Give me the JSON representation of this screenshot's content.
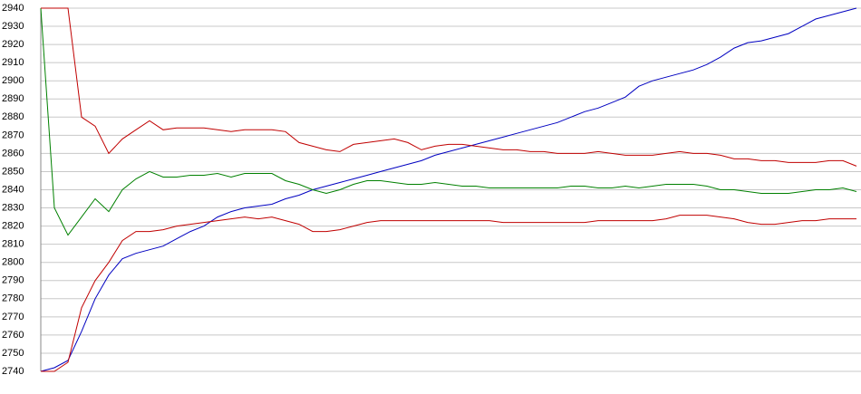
{
  "chart_data": {
    "type": "line",
    "ylim": [
      2740,
      2940
    ],
    "yticks": [
      2740,
      2750,
      2760,
      2770,
      2780,
      2790,
      2800,
      2810,
      2820,
      2830,
      2840,
      2850,
      2860,
      2870,
      2880,
      2890,
      2900,
      2910,
      2920,
      2930,
      2940
    ],
    "grid": true,
    "series": [
      {
        "color": "#0000c0",
        "values": [
          2740,
          2742,
          2746,
          2762,
          2780,
          2793,
          2802,
          2805,
          2807,
          2809,
          2813,
          2817,
          2820,
          2825,
          2828,
          2830,
          2831,
          2832,
          2835,
          2837,
          2840,
          2842,
          2844,
          2846,
          2848,
          2850,
          2852,
          2854,
          2856,
          2859,
          2861,
          2863,
          2865,
          2867,
          2869,
          2871,
          2873,
          2875,
          2877,
          2880,
          2883,
          2885,
          2888,
          2891,
          2897,
          2900,
          2902,
          2904,
          2906,
          2909,
          2913,
          2918,
          2921,
          2922,
          2924,
          2926,
          2930,
          2934,
          2936,
          2938,
          2940
        ]
      },
      {
        "color": "#008000",
        "values": [
          2940,
          2830,
          2815,
          2825,
          2835,
          2828,
          2840,
          2846,
          2850,
          2847,
          2847,
          2848,
          2848,
          2849,
          2847,
          2849,
          2849,
          2849,
          2845,
          2843,
          2840,
          2838,
          2840,
          2843,
          2845,
          2845,
          2844,
          2843,
          2843,
          2844,
          2843,
          2842,
          2842,
          2841,
          2841,
          2841,
          2841,
          2841,
          2841,
          2842,
          2842,
          2841,
          2841,
          2842,
          2841,
          2842,
          2843,
          2843,
          2843,
          2842,
          2840,
          2840,
          2839,
          2838,
          2838,
          2838,
          2839,
          2840,
          2840,
          2841,
          2839
        ]
      },
      {
        "color": "#c00000",
        "values": [
          2940,
          2940,
          2940,
          2880,
          2875,
          2860,
          2868,
          2873,
          2878,
          2873,
          2874,
          2874,
          2874,
          2873,
          2872,
          2873,
          2873,
          2873,
          2872,
          2866,
          2864,
          2862,
          2861,
          2865,
          2866,
          2867,
          2868,
          2866,
          2862,
          2864,
          2865,
          2865,
          2864,
          2863,
          2862,
          2862,
          2861,
          2861,
          2860,
          2860,
          2860,
          2861,
          2860,
          2859,
          2859,
          2859,
          2860,
          2861,
          2860,
          2860,
          2859,
          2857,
          2857,
          2856,
          2856,
          2855,
          2855,
          2855,
          2856,
          2856,
          2853
        ]
      },
      {
        "color": "#c00000",
        "values": [
          2740,
          2740,
          2745,
          2775,
          2790,
          2800,
          2812,
          2817,
          2817,
          2818,
          2820,
          2821,
          2822,
          2823,
          2824,
          2825,
          2824,
          2825,
          2823,
          2821,
          2817,
          2817,
          2818,
          2820,
          2822,
          2823,
          2823,
          2823,
          2823,
          2823,
          2823,
          2823,
          2823,
          2823,
          2822,
          2822,
          2822,
          2822,
          2822,
          2822,
          2822,
          2823,
          2823,
          2823,
          2823,
          2823,
          2824,
          2826,
          2826,
          2826,
          2825,
          2824,
          2822,
          2821,
          2821,
          2822,
          2823,
          2823,
          2824,
          2824,
          2824
        ]
      }
    ]
  }
}
